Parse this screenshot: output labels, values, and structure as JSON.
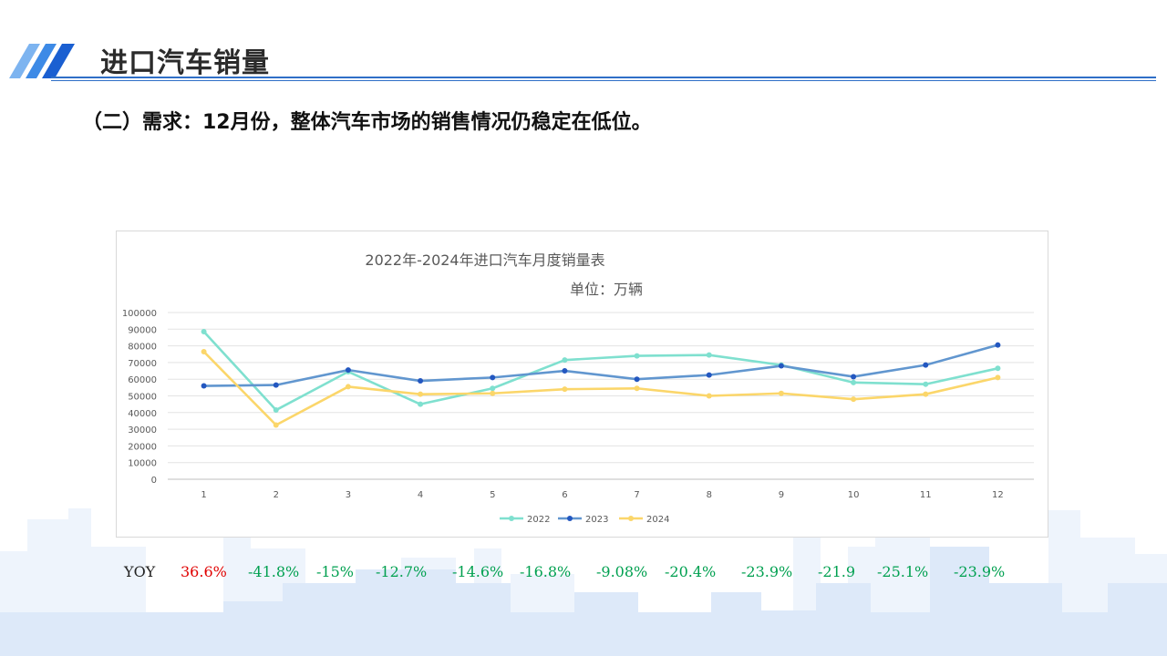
{
  "header": {
    "title": "进口汽车销量"
  },
  "subtitle": "（二）需求：12月份，整体汽车市场的销售情况仍稳定在低位。",
  "colors": {
    "accent": "#2f6fc7",
    "negative": "#00a050",
    "positive": "#e00000"
  },
  "chart_data": {
    "type": "line",
    "title": "2022年-2024年进口汽车月度销量表",
    "subtitle": "单位：万辆",
    "categories": [
      "1",
      "2",
      "3",
      "4",
      "5",
      "6",
      "7",
      "8",
      "9",
      "10",
      "11",
      "12"
    ],
    "ylim": [
      0,
      100000
    ],
    "yticks": [
      "100000",
      "90000",
      "80000",
      "70000",
      "60000",
      "50000",
      "40000",
      "30000",
      "20000",
      "10000",
      "0"
    ],
    "grid": true,
    "legend": "bottom",
    "series": [
      {
        "name": "2022",
        "color": "#7fe0cf",
        "values": [
          88500,
          41500,
          64500,
          45000,
          54500,
          71500,
          74000,
          74500,
          68500,
          58000,
          57000,
          66500
        ]
      },
      {
        "name": "2023",
        "color": "#6196cf",
        "marker": "#2357c0",
        "values": [
          56000,
          56500,
          65500,
          59000,
          61000,
          65000,
          60000,
          62500,
          68000,
          61500,
          68500,
          80500
        ]
      },
      {
        "name": "2024",
        "color": "#fbd66a",
        "values": [
          76500,
          32500,
          55500,
          51000,
          51500,
          54000,
          54500,
          50000,
          51500,
          48000,
          51000,
          61000
        ]
      }
    ]
  },
  "yoy": {
    "label": "YOY",
    "values": [
      {
        "text": "36.6%",
        "sign": "positive"
      },
      {
        "text": "-41.8%",
        "sign": "negative"
      },
      {
        "text": "-15%",
        "sign": "negative"
      },
      {
        "text": "-12.7%",
        "sign": "negative"
      },
      {
        "text": "-14.6%",
        "sign": "negative"
      },
      {
        "text": "-16.8%",
        "sign": "negative"
      },
      {
        "text": "-9.08%",
        "sign": "negative"
      },
      {
        "text": "-20.4%",
        "sign": "negative"
      },
      {
        "text": "-23.9%",
        "sign": "negative"
      },
      {
        "text": "-21.9",
        "sign": "negative"
      },
      {
        "text": "-25.1%",
        "sign": "negative"
      },
      {
        "text": "-23.9%",
        "sign": "negative"
      }
    ]
  }
}
